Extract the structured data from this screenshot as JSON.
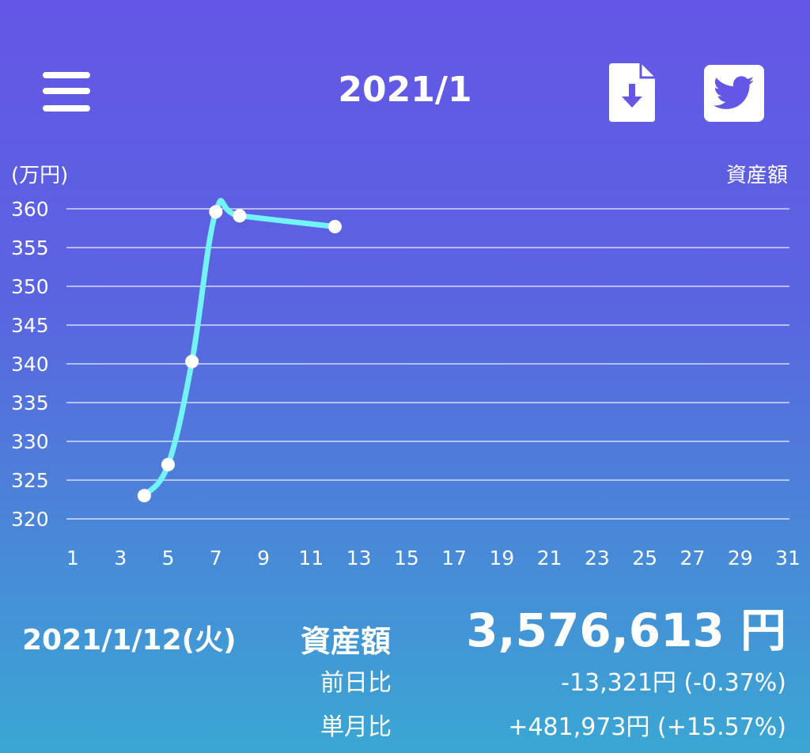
{
  "header": {
    "title": "2021/1",
    "menu_icon": "hamburger-menu-icon",
    "download_icon": "file-download-icon",
    "share_icon": "twitter-bird-icon"
  },
  "chart_data": {
    "type": "line",
    "unit_label": "(万円)",
    "series_label": "資産額",
    "ylim": [
      320,
      360
    ],
    "yticks": [
      "320",
      "325",
      "330",
      "335",
      "340",
      "345",
      "350",
      "355",
      "360"
    ],
    "xlim": [
      1,
      31
    ],
    "xticks": [
      "1",
      "3",
      "5",
      "7",
      "9",
      "11",
      "13",
      "15",
      "17",
      "19",
      "21",
      "23",
      "25",
      "27",
      "29",
      "31"
    ],
    "grid": true,
    "line_color": "#72f3f8",
    "points": [
      {
        "x": 4,
        "y": 323
      },
      {
        "x": 5,
        "y": 327
      },
      {
        "x": 6,
        "y": 340.3
      },
      {
        "x": 7,
        "y": 359.6
      },
      {
        "x": 8,
        "y": 359.1
      },
      {
        "x": 12,
        "y": 357.7
      }
    ]
  },
  "summary": {
    "date": "2021/1/12(火)",
    "asset_label": "資産額",
    "asset_value": "3,576,613 円",
    "day_change_label": "前日比",
    "day_change_value": "-13,321円 (-0.37%)",
    "month_change_label": "単月比",
    "month_change_value": "+481,973円 (+15.57%)"
  }
}
